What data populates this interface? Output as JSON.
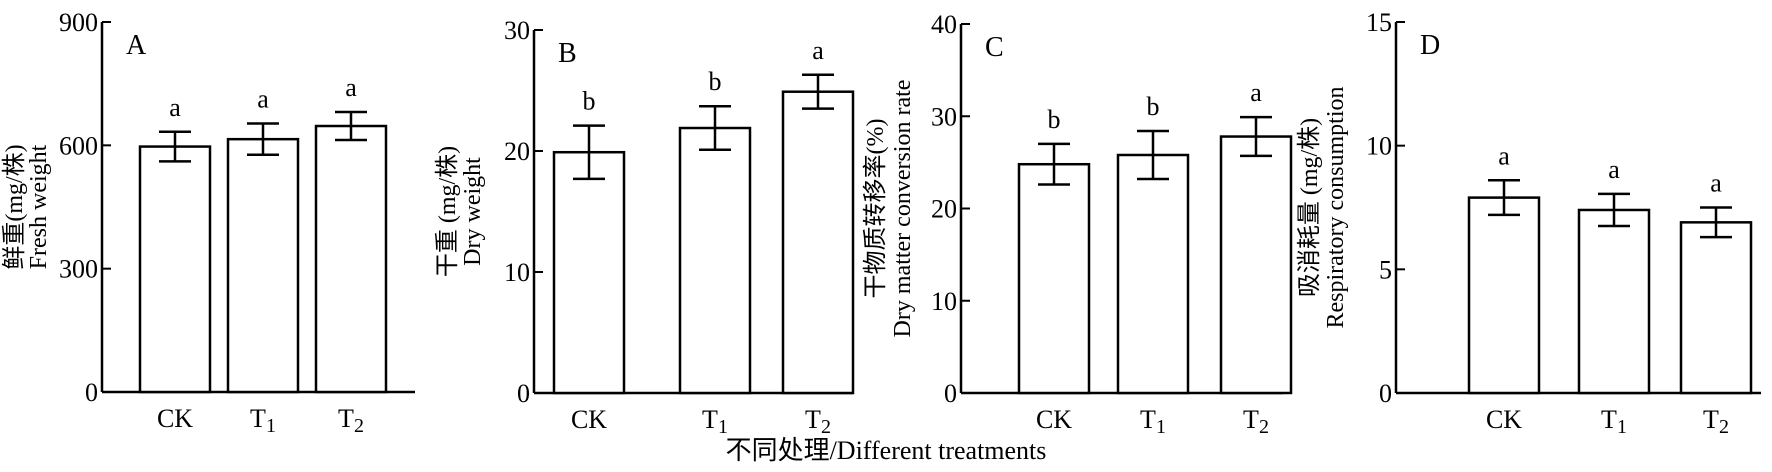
{
  "common_xlabel": "不同处理/Different treatments",
  "chart_data": [
    {
      "type": "bar",
      "panel_label": "A",
      "categories": [
        "CK",
        "T1",
        "T2"
      ],
      "values": [
        597,
        615,
        647
      ],
      "errors": [
        36,
        38,
        34
      ],
      "significance": [
        "a",
        "a",
        "a"
      ],
      "ylabel_cn": "鲜重(mg/株)",
      "ylabel_en": "Fresh weight",
      "ylim": [
        0,
        900
      ],
      "yticks": [
        0,
        300,
        600,
        900
      ],
      "grid": false
    },
    {
      "type": "bar",
      "panel_label": "B",
      "categories": [
        "CK",
        "T1",
        "T2"
      ],
      "values": [
        19.9,
        21.9,
        24.9
      ],
      "errors": [
        2.2,
        1.8,
        1.4
      ],
      "significance": [
        "b",
        "b",
        "a"
      ],
      "ylabel_cn": "干重 (mg/株)",
      "ylabel_en": "Dry weight",
      "ylim": [
        0,
        30
      ],
      "yticks": [
        0,
        10,
        20,
        30
      ],
      "grid": false
    },
    {
      "type": "bar",
      "panel_label": "C",
      "categories": [
        "CK",
        "T1",
        "T2"
      ],
      "values": [
        24.8,
        25.8,
        27.8
      ],
      "errors": [
        2.2,
        2.6,
        2.1
      ],
      "significance": [
        "b",
        "b",
        "a"
      ],
      "ylabel_cn": "干物质转移率(%)",
      "ylabel_en": "Dry matter conversion rate",
      "ylim": [
        0,
        40
      ],
      "yticks": [
        0,
        10,
        20,
        30,
        40
      ],
      "grid": false
    },
    {
      "type": "bar",
      "panel_label": "D",
      "categories": [
        "CK",
        "T1",
        "T2"
      ],
      "values": [
        7.9,
        7.4,
        6.9
      ],
      "errors": [
        0.7,
        0.65,
        0.6
      ],
      "significance": [
        "a",
        "a",
        "a"
      ],
      "ylabel_cn": "吸消耗量 (mg/株)",
      "ylabel_en": "Respiratory consumption",
      "ylim": [
        0,
        15
      ],
      "yticks": [
        0,
        5,
        10,
        15
      ],
      "grid": false
    }
  ]
}
